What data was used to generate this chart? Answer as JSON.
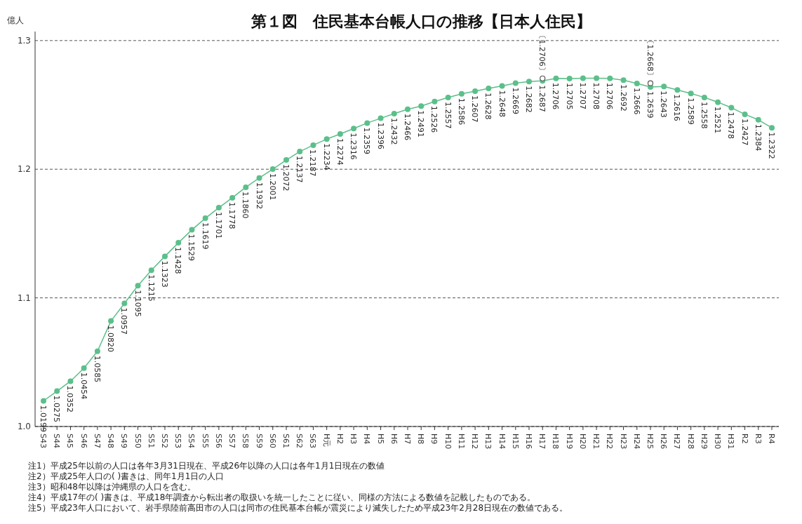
{
  "chart_data": {
    "type": "line",
    "title": "第１図　住民基本台帳人口の推移【日本人住民】",
    "ylabel": "億人",
    "categories": [
      "S43",
      "S44",
      "S45",
      "S46",
      "S47",
      "S48",
      "S49",
      "S50",
      "S51",
      "S52",
      "S53",
      "S54",
      "S55",
      "S56",
      "S57",
      "S58",
      "S59",
      "S60",
      "S61",
      "S62",
      "S63",
      "H元",
      "H2",
      "H3",
      "H4",
      "H5",
      "H6",
      "H7",
      "H8",
      "H9",
      "H10",
      "H11",
      "H12",
      "H13",
      "H14",
      "H15",
      "H16",
      "H17",
      "H18",
      "H19",
      "H20",
      "H21",
      "H22",
      "H23",
      "H24",
      "H25",
      "H26",
      "H27",
      "H28",
      "H29",
      "H30",
      "H31",
      "R2",
      "R3",
      "R4"
    ],
    "series": [
      {
        "color": "#5cbf8a",
        "values": [
          1.0199,
          1.0275,
          1.0352,
          1.0454,
          1.0585,
          1.082,
          1.0957,
          1.1095,
          1.1215,
          1.1323,
          1.1428,
          1.1529,
          1.1619,
          1.1701,
          1.1778,
          1.186,
          1.1932,
          1.2001,
          1.2072,
          1.2137,
          1.2187,
          1.2234,
          1.2274,
          1.2316,
          1.2359,
          1.2396,
          1.2432,
          1.2466,
          1.2491,
          1.2526,
          1.2557,
          1.2586,
          1.2607,
          1.2628,
          1.2648,
          1.2669,
          1.2682,
          1.2687,
          1.2706,
          1.2705,
          1.2707,
          1.2708,
          1.2706,
          1.2692,
          1.2666,
          1.2639,
          1.2643,
          1.2616,
          1.2589,
          1.2558,
          1.2521,
          1.2478,
          1.2427,
          1.2384,
          1.2322
        ],
        "value_labels": [
          "1.0199",
          "1.0275",
          "1.0352",
          "1.0454",
          "1.0585",
          "1.0820",
          "1.0957",
          "1.1095",
          "1.1215",
          "1.1323",
          "1.1428",
          "1.1529",
          "1.1619",
          "1.1701",
          "1.1778",
          "1.1860",
          "1.1932",
          "1.2001",
          "1.2072",
          "1.2137",
          "1.2187",
          "1.2234",
          "1.2274",
          "1.2316",
          "1.2359",
          "1.2396",
          "1.2432",
          "1.2466",
          "1.2491",
          "1.2526",
          "1.2557",
          "1.2586",
          "1.2607",
          "1.2628",
          "1.2648",
          "1.2669",
          "1.2682",
          "1.2687",
          "1.2706",
          "1.2705",
          "1.2707",
          "1.2708",
          "1.2706",
          "1.2692",
          "1.2666",
          "1.2639",
          "1.2643",
          "1.2616",
          "1.2589",
          "1.2558",
          "1.2521",
          "1.2478",
          "1.2427",
          "1.2384",
          "1.2322"
        ]
      },
      {
        "type": "scatter",
        "color": "#555555",
        "values": [
          null,
          null,
          null,
          null,
          null,
          null,
          null,
          null,
          null,
          null,
          null,
          null,
          null,
          null,
          null,
          null,
          null,
          null,
          null,
          null,
          null,
          null,
          null,
          null,
          null,
          null,
          null,
          null,
          null,
          null,
          null,
          null,
          null,
          null,
          null,
          null,
          null,
          1.2706,
          null,
          null,
          null,
          null,
          null,
          null,
          null,
          1.2668,
          null,
          null,
          null,
          null,
          null,
          null,
          null,
          null,
          null
        ],
        "value_labels": [
          null,
          null,
          null,
          null,
          null,
          null,
          null,
          null,
          null,
          null,
          null,
          null,
          null,
          null,
          null,
          null,
          null,
          null,
          null,
          null,
          null,
          null,
          null,
          null,
          null,
          null,
          null,
          null,
          null,
          null,
          null,
          null,
          null,
          null,
          null,
          null,
          null,
          "〔1.2706〕",
          null,
          null,
          null,
          null,
          null,
          null,
          null,
          "〔1.2668〕",
          null,
          null,
          null,
          null,
          null,
          null,
          null,
          null,
          null
        ]
      }
    ],
    "ylim": [
      1.0,
      1.307
    ],
    "yticks": [
      {
        "value": 1.0,
        "label": "1.0"
      },
      {
        "value": 1.1,
        "label": "1.1"
      },
      {
        "value": 1.2,
        "label": "1.2"
      },
      {
        "value": 1.3,
        "label": "1.3"
      }
    ],
    "grid": "y",
    "marker": "circle",
    "annotations": [
      "注1）平成25年以前の人口は各年3月31日現在、平成26年以降の人口は各年1月1日現在の数値",
      "注2）平成25年人口の( )書きは、同年1月1日の人口",
      "注3）昭和48年以降は沖縄県の人口を含む。",
      "注4）平成17年の( )書きは、平成18年調査から転出者の取扱いを統一したことに従い、同様の方法による数値を記載したものである。",
      "注5）平成23年人口において、岩手県陸前高田市の人口は同市の住民基本台帳が震災により滅失したため平成23年2月28日現在の数値である。"
    ]
  }
}
